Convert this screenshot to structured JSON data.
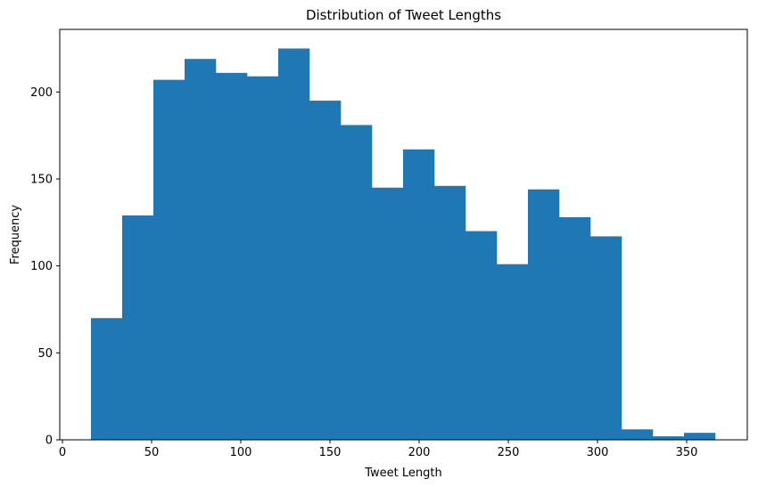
{
  "chart_data": {
    "type": "bar",
    "title": "Distribution of Tweet Lengths",
    "xlabel": "Tweet Length",
    "ylabel": "Frequency",
    "xlim": [
      -1.5,
      384
    ],
    "ylim": [
      0,
      236
    ],
    "grid": false,
    "bar_color": "#1f77b4",
    "bin_start": 16,
    "bin_width": 17.5,
    "values": [
      70,
      129,
      207,
      219,
      211,
      209,
      225,
      195,
      181,
      145,
      167,
      146,
      120,
      101,
      144,
      128,
      117,
      6,
      2,
      4
    ],
    "x_ticks": [
      0,
      50,
      100,
      150,
      200,
      250,
      300,
      350
    ],
    "y_ticks": [
      0,
      50,
      100,
      150,
      200
    ]
  }
}
